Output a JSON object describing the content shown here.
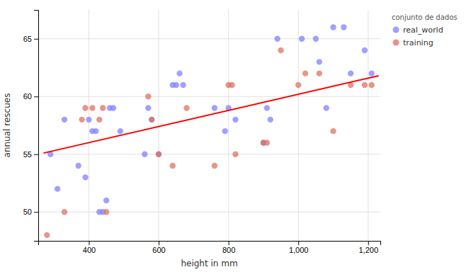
{
  "chart_data": {
    "type": "scatter",
    "xlabel": "height in mm",
    "ylabel": "annual rescues",
    "legend_title": "conjunto de dados",
    "legend": "upper right",
    "grid": true,
    "series": [
      {
        "name": "real_world",
        "color": "#8080ff",
        "x": [
          290,
          310,
          330,
          370,
          390,
          400,
          410,
          420,
          430,
          440,
          450,
          460,
          470,
          490,
          560,
          570,
          580,
          600,
          640,
          650,
          660,
          670,
          760,
          790,
          800,
          820,
          900,
          910,
          920,
          940,
          1010,
          1050,
          1060,
          1080,
          1100,
          1130,
          1150,
          1190,
          1210
        ],
        "values": [
          55,
          52,
          58,
          54,
          53,
          58,
          57,
          57,
          50,
          50,
          51,
          59,
          59,
          57,
          55,
          59,
          58,
          55,
          61,
          61,
          62,
          61,
          59,
          57,
          59,
          58,
          56,
          59,
          58,
          65,
          65,
          65,
          63,
          59,
          66,
          66,
          62,
          64,
          62
        ]
      },
      {
        "name": "training",
        "color": "#e07060",
        "x": [
          280,
          330,
          380,
          390,
          410,
          430,
          440,
          450,
          570,
          580,
          600,
          640,
          680,
          760,
          800,
          810,
          820,
          900,
          910,
          950,
          1000,
          1020,
          1060,
          1100,
          1150,
          1190,
          1210
        ],
        "values": [
          48,
          50,
          58,
          59,
          59,
          58,
          59,
          50,
          60,
          58,
          55,
          54,
          59,
          54,
          61,
          61,
          55,
          56,
          56,
          64,
          61,
          62,
          62,
          57,
          61,
          61,
          61
        ]
      },
      {
        "type": "line",
        "color": "red",
        "x": [
          270,
          1230
        ],
        "values": [
          55.1,
          61.8
        ]
      }
    ],
    "xlim": [
      255,
      1235
    ],
    "ylim": [
      47.5,
      67.5
    ],
    "xticks": [
      400,
      600,
      800,
      {
        "value": 1000,
        "label": "1,000"
      },
      {
        "value": 1200,
        "label": "1,200"
      }
    ],
    "yticks": [
      50,
      55,
      60,
      65
    ]
  }
}
